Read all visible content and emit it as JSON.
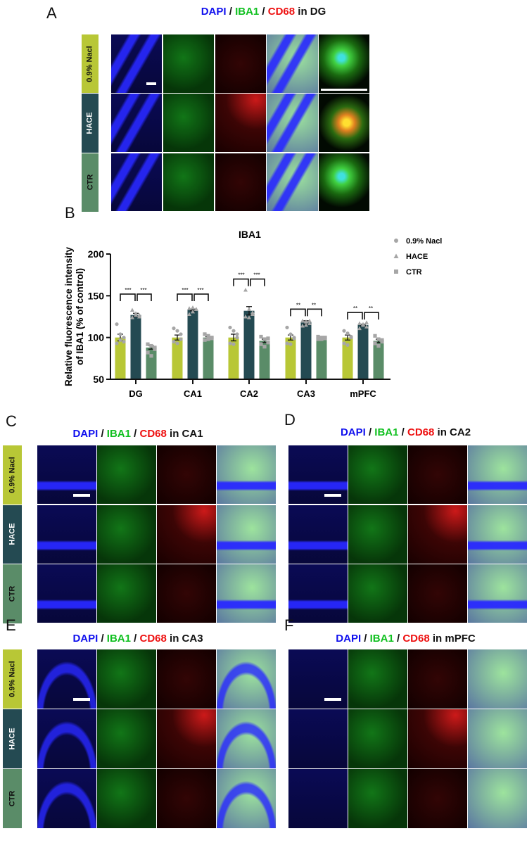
{
  "colors": {
    "nacl": "#b8c736",
    "hace": "#244a52",
    "ctr": "#5a8c68",
    "points": "#a6a6a6",
    "dapi": "#1010ee",
    "iba1": "#10c020",
    "cd68": "#ee1010"
  },
  "groups": [
    "0.9% Nacl",
    "HACE",
    "CTR"
  ],
  "panels": [
    {
      "letter": "A",
      "dapi": "DAPI",
      "sep1": " / ",
      "iba1": "IBA1",
      "sep2": " / ",
      "cd68": "CD68",
      "region": " in DG"
    },
    {
      "letter": "C",
      "dapi": "DAPI",
      "sep1": " / ",
      "iba1": "IBA1",
      "sep2": " / ",
      "cd68": "CD68",
      "region": " in CA1"
    },
    {
      "letter": "D",
      "dapi": "DAPI",
      "sep1": " / ",
      "iba1": "IBA1",
      "sep2": " / ",
      "cd68": "CD68",
      "region": " in CA2"
    },
    {
      "letter": "E",
      "dapi": "DAPI",
      "sep1": " / ",
      "iba1": "IBA1",
      "sep2": " / ",
      "cd68": "CD68",
      "region": " in CA3"
    },
    {
      "letter": "F",
      "dapi": "DAPI",
      "sep1": " / ",
      "iba1": "IBA1",
      "sep2": " / ",
      "cd68": "CD68",
      "region": " in mPFC"
    }
  ],
  "chart_letter": "B",
  "chart_data": {
    "type": "bar",
    "title": "IBA1",
    "ylabel_line1": "Relative fluorescence intensity",
    "ylabel_line2": "of IBA1 (% of control)",
    "xlabel": "",
    "ylim": [
      50,
      200
    ],
    "yticks": [
      "50",
      "100",
      "150",
      "200"
    ],
    "categories": [
      "DG",
      "CA1",
      "CA2",
      "CA3",
      "mPFC"
    ],
    "legend": {
      "placement": "right",
      "entries": [
        "0.9% Nacl",
        "HACE",
        "CTR"
      ],
      "markers": [
        "circle",
        "triangle",
        "square"
      ]
    },
    "series": [
      {
        "name": "0.9% Nacl",
        "values": [
          100,
          100,
          100,
          100,
          100
        ],
        "sem": [
          4,
          3,
          4,
          3,
          3
        ],
        "points": [
          [
            116,
            104,
            95,
            93,
            97,
            100
          ],
          [
            111,
            108,
            104,
            95,
            93,
            98
          ],
          [
            112,
            108,
            104,
            93,
            92,
            100
          ],
          [
            112,
            104,
            100,
            93,
            92,
            99
          ],
          [
            108,
            105,
            100,
            93,
            91,
            101
          ]
        ]
      },
      {
        "name": "HACE",
        "values": [
          127,
          133,
          132,
          118,
          115
        ],
        "sem": [
          2,
          1,
          5,
          2,
          1
        ],
        "points": [
          [
            133,
            129,
            125,
            124,
            127,
            127
          ],
          [
            135,
            136,
            134,
            128,
            131,
            134
          ],
          [
            157,
            134,
            130,
            125,
            124,
            128
          ],
          [
            120,
            119,
            117,
            114,
            115,
            120
          ],
          [
            117,
            116,
            113,
            111,
            115,
            118
          ]
        ]
      },
      {
        "name": "CTR",
        "values": [
          88,
          100,
          96,
          99,
          96
        ],
        "sem": [
          2,
          1,
          2,
          1,
          2
        ],
        "points": [
          [
            92,
            90,
            86,
            82,
            78,
            88
          ],
          [
            104,
            102,
            99,
            97,
            98,
            100
          ],
          [
            101,
            98,
            94,
            92,
            89,
            99
          ],
          [
            101,
            100,
            99,
            98,
            98,
            100
          ],
          [
            102,
            98,
            95,
            93,
            90,
            97
          ]
        ]
      }
    ],
    "significance": [
      {
        "category": "DG",
        "left": "***",
        "right": "***",
        "level": 152
      },
      {
        "category": "CA1",
        "left": "***",
        "right": "***",
        "level": 152
      },
      {
        "category": "CA2",
        "left": "***",
        "right": "***",
        "level": 170
      },
      {
        "category": "CA3",
        "left": "**",
        "right": "**",
        "level": 134
      },
      {
        "category": "mPFC",
        "left": "**",
        "right": "**",
        "level": 130
      }
    ]
  }
}
